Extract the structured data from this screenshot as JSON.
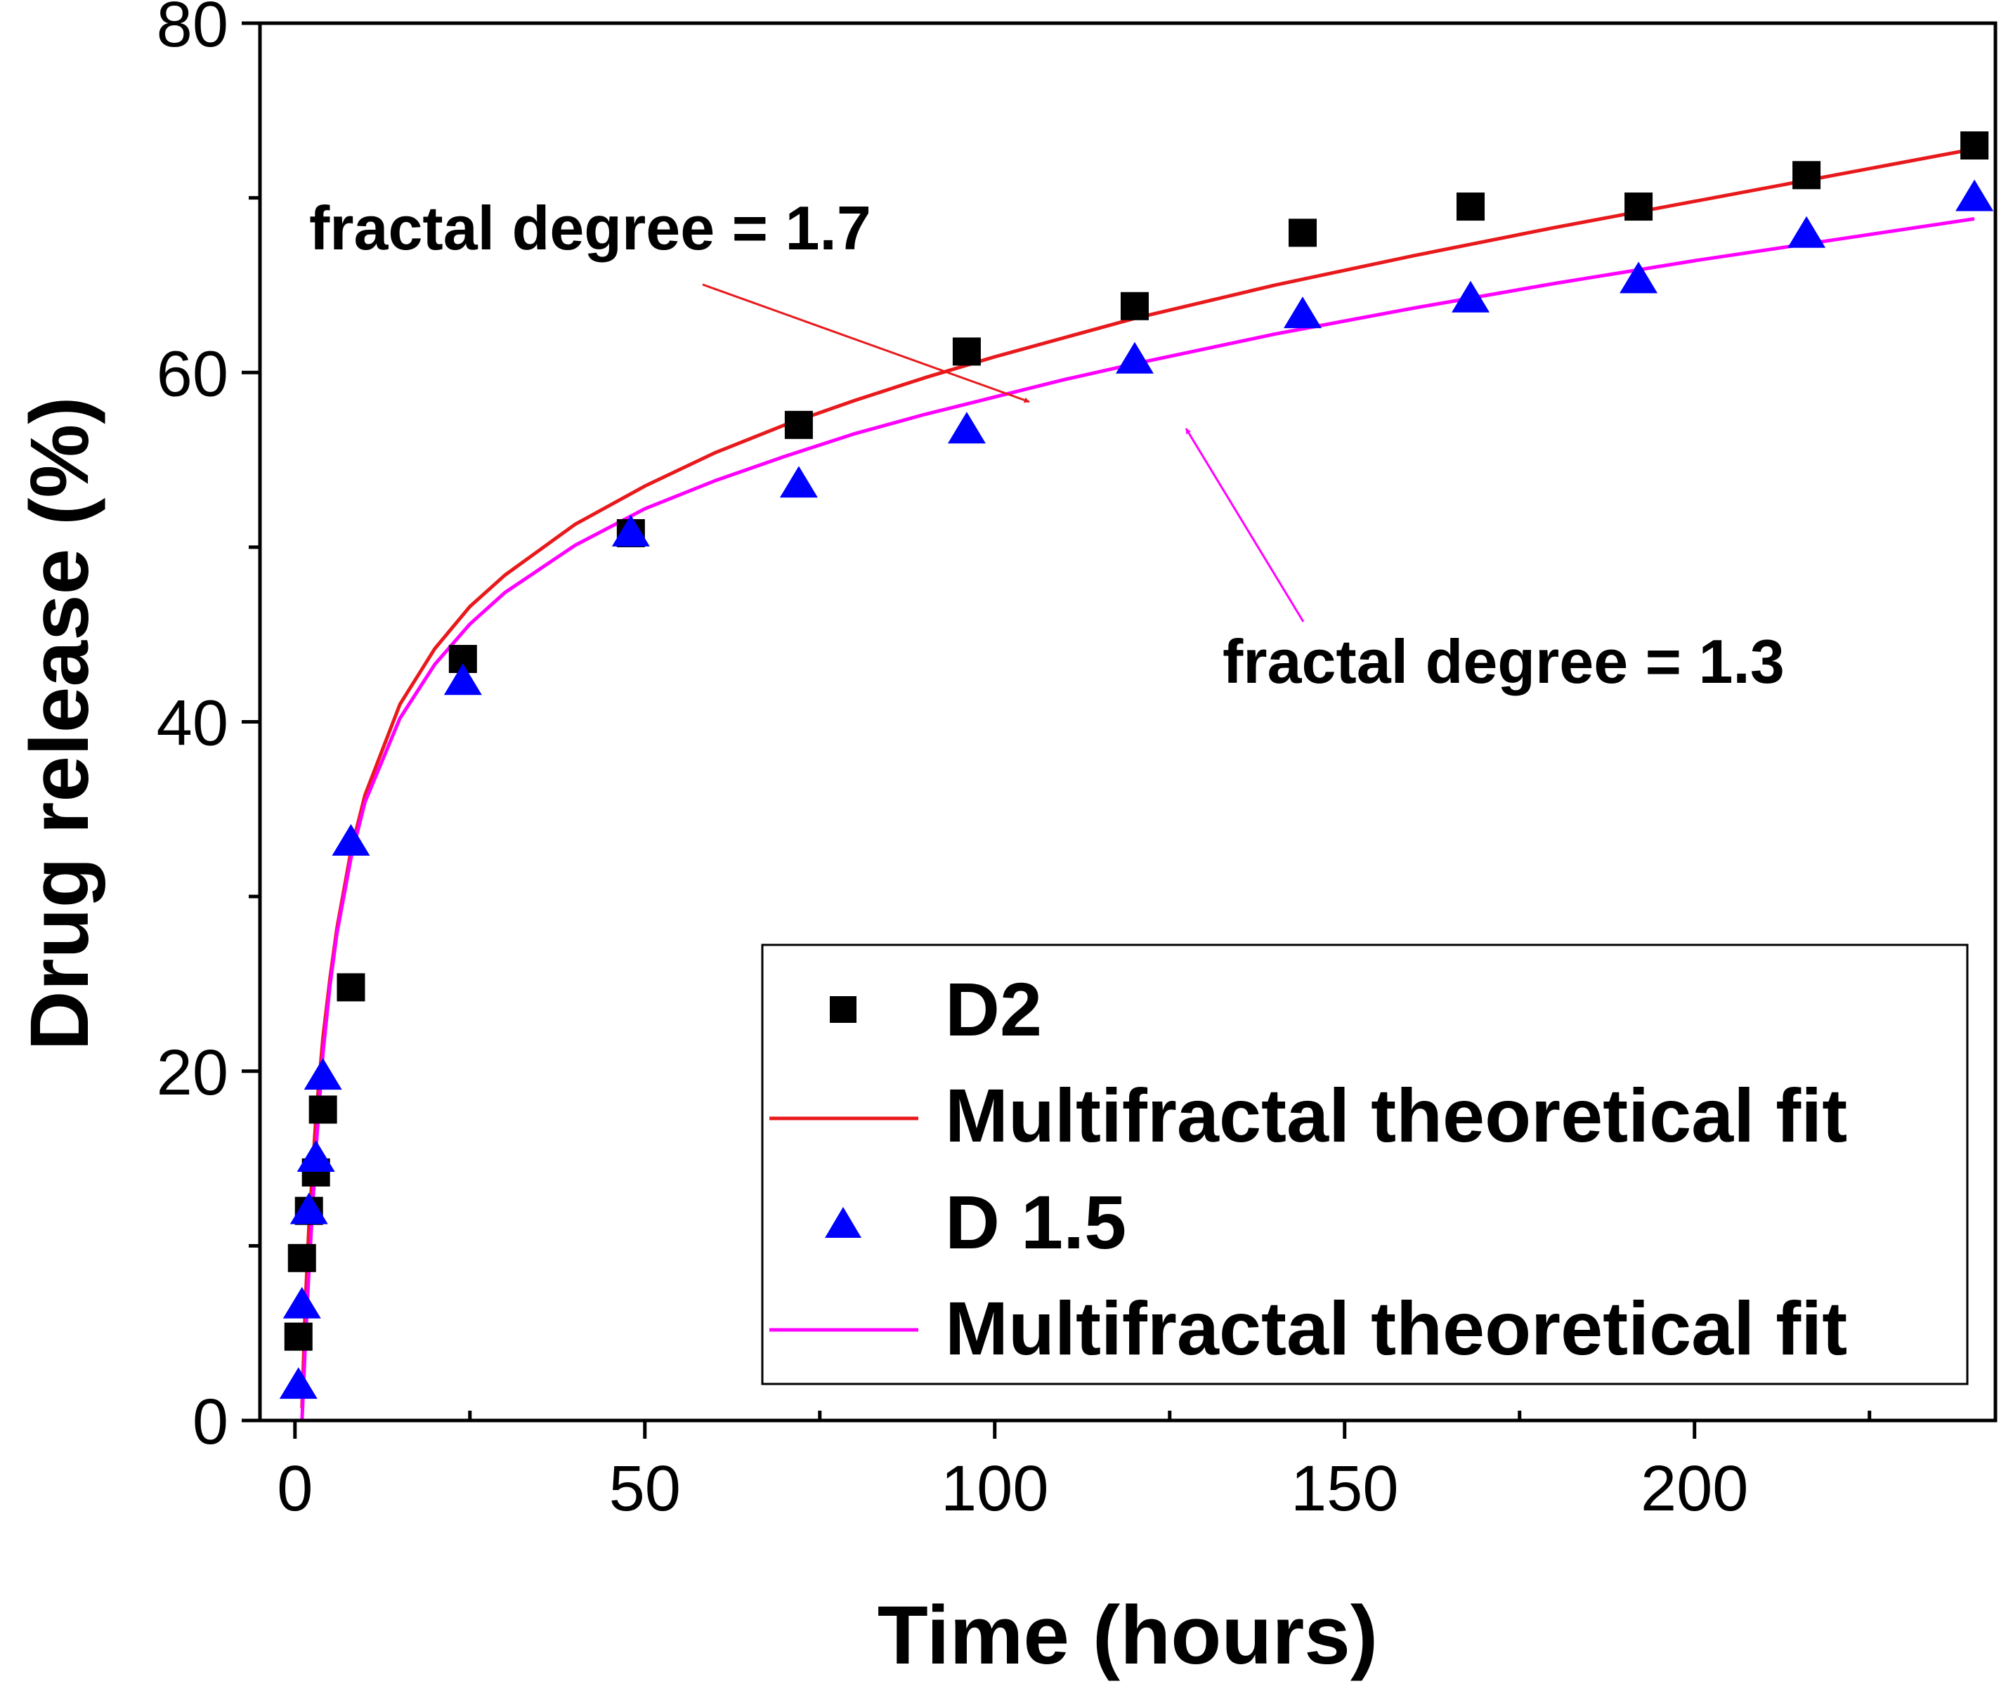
{
  "chart_data": {
    "type": "scatter",
    "xlabel": "Time (hours)",
    "ylabel": "Drug release (%)",
    "xlim": [
      -5,
      243
    ],
    "ylim": [
      0,
      80
    ],
    "x_ticks": [
      0,
      50,
      100,
      150,
      200
    ],
    "x_minor_ticks": [
      25,
      75,
      125,
      175,
      225
    ],
    "y_ticks": [
      0,
      20,
      40,
      60,
      80
    ],
    "y_minor_ticks": [
      10,
      30,
      50,
      70
    ],
    "grid": false,
    "legend_position": "bottom-right",
    "series": [
      {
        "name": "D2",
        "kind": "scatter",
        "marker": "square",
        "color": "#000000",
        "x": [
          0.5,
          1,
          2,
          3,
          4,
          8,
          24,
          48,
          72,
          96,
          120,
          144,
          168,
          192,
          216,
          240
        ],
        "y": [
          4.8,
          9.3,
          12.0,
          14.2,
          17.8,
          24.8,
          43.6,
          50.8,
          57.0,
          61.2,
          63.8,
          68.0,
          69.5,
          69.5,
          71.3,
          73.0
        ]
      },
      {
        "name": "Multifractal theoretical fit",
        "kind": "line",
        "color": "#e8191c",
        "x": [
          1,
          1.5,
          2,
          3,
          4,
          5,
          6,
          8,
          10,
          15,
          20,
          25,
          30,
          40,
          50,
          60,
          70,
          80,
          90,
          100,
          110,
          120,
          140,
          160,
          180,
          200,
          220,
          240
        ],
        "y": [
          0.7,
          6.8,
          11.1,
          17.4,
          21.9,
          25.3,
          28.2,
          32.6,
          35.8,
          41.0,
          44.2,
          46.6,
          48.4,
          51.3,
          53.5,
          55.4,
          57.0,
          58.4,
          59.7,
          60.9,
          62.0,
          63.1,
          65.0,
          66.7,
          68.3,
          69.8,
          71.3,
          72.8
        ]
      },
      {
        "name": "D 1.5",
        "kind": "scatter",
        "marker": "triangle",
        "color": "#0000ff",
        "x": [
          0.5,
          1,
          2,
          3,
          4,
          8,
          24,
          48,
          72,
          96,
          120,
          144,
          168,
          192,
          216,
          240
        ],
        "y": [
          2.0,
          6.6,
          12.0,
          15.0,
          19.7,
          33.1,
          42.3,
          50.8,
          53.6,
          56.7,
          60.7,
          63.3,
          64.2,
          65.3,
          67.9,
          70.0
        ]
      },
      {
        "name": "Multifractal theoretical fit",
        "kind": "line",
        "color": "#ff00ff",
        "x": [
          1,
          1.5,
          2,
          3,
          4,
          5,
          6,
          8,
          10,
          15,
          20,
          25,
          30,
          40,
          50,
          60,
          70,
          80,
          90,
          100,
          110,
          120,
          140,
          160,
          180,
          200,
          220,
          240
        ],
        "y": [
          0.0,
          4.5,
          8.6,
          15.5,
          21.0,
          24.9,
          27.9,
          32.2,
          35.4,
          40.2,
          43.3,
          45.6,
          47.4,
          50.1,
          52.2,
          53.8,
          55.2,
          56.5,
          57.6,
          58.6,
          59.6,
          60.5,
          62.2,
          63.7,
          65.1,
          66.4,
          67.6,
          68.8
        ]
      }
    ],
    "annotations": [
      {
        "text": "fractal degree = 1.7",
        "color": "#e8191c",
        "points_to": [
          105,
          62.2
        ]
      },
      {
        "text": "fractal degree = 1.3",
        "color": "#ff00ff",
        "points_to": [
          128,
          60.5
        ]
      }
    ]
  }
}
